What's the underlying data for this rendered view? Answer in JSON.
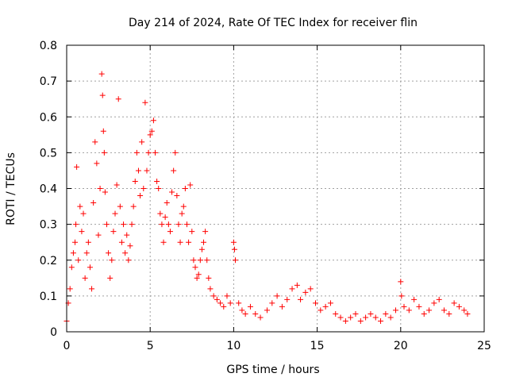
{
  "chart_data": {
    "type": "scatter",
    "title": "Day 214 of 2024, Rate Of TEC Index for receiver flin",
    "xlabel": "GPS time / hours",
    "ylabel": "ROTI / TECUs",
    "xlim": [
      0,
      25
    ],
    "ylim": [
      0,
      0.8
    ],
    "xticks": [
      "0",
      "5",
      "10",
      "15",
      "20",
      "25"
    ],
    "yticks": [
      "0",
      "0.1",
      "0.2",
      "0.3",
      "0.4",
      "0.5",
      "0.6",
      "0.7",
      "0.8"
    ],
    "grid": true,
    "marker": "+",
    "color": "#ff0000",
    "series": [
      {
        "name": "ROTI",
        "points": [
          [
            0.0,
            0.03
          ],
          [
            0.1,
            0.08
          ],
          [
            0.2,
            0.12
          ],
          [
            0.3,
            0.18
          ],
          [
            0.4,
            0.22
          ],
          [
            0.5,
            0.25
          ],
          [
            0.55,
            0.3
          ],
          [
            0.6,
            0.46
          ],
          [
            0.7,
            0.2
          ],
          [
            0.8,
            0.35
          ],
          [
            0.9,
            0.28
          ],
          [
            1.0,
            0.33
          ],
          [
            1.1,
            0.15
          ],
          [
            1.2,
            0.22
          ],
          [
            1.3,
            0.25
          ],
          [
            1.4,
            0.18
          ],
          [
            1.5,
            0.12
          ],
          [
            1.6,
            0.36
          ],
          [
            1.7,
            0.53
          ],
          [
            1.8,
            0.47
          ],
          [
            1.9,
            0.27
          ],
          [
            2.0,
            0.4
          ],
          [
            2.1,
            0.72
          ],
          [
            2.15,
            0.66
          ],
          [
            2.2,
            0.56
          ],
          [
            2.25,
            0.5
          ],
          [
            2.3,
            0.39
          ],
          [
            2.4,
            0.3
          ],
          [
            2.5,
            0.22
          ],
          [
            2.6,
            0.15
          ],
          [
            2.7,
            0.2
          ],
          [
            2.8,
            0.28
          ],
          [
            2.9,
            0.33
          ],
          [
            3.0,
            0.41
          ],
          [
            3.1,
            0.65
          ],
          [
            3.2,
            0.35
          ],
          [
            3.3,
            0.25
          ],
          [
            3.4,
            0.3
          ],
          [
            3.5,
            0.22
          ],
          [
            3.6,
            0.27
          ],
          [
            3.7,
            0.2
          ],
          [
            3.8,
            0.24
          ],
          [
            3.9,
            0.3
          ],
          [
            4.0,
            0.35
          ],
          [
            4.1,
            0.42
          ],
          [
            4.2,
            0.5
          ],
          [
            4.3,
            0.45
          ],
          [
            4.4,
            0.38
          ],
          [
            4.5,
            0.53
          ],
          [
            4.6,
            0.4
          ],
          [
            4.7,
            0.64
          ],
          [
            4.8,
            0.45
          ],
          [
            4.9,
            0.5
          ],
          [
            5.0,
            0.55
          ],
          [
            5.1,
            0.56
          ],
          [
            5.2,
            0.59
          ],
          [
            5.3,
            0.5
          ],
          [
            5.4,
            0.42
          ],
          [
            5.5,
            0.4
          ],
          [
            5.6,
            0.33
          ],
          [
            5.7,
            0.3
          ],
          [
            5.8,
            0.25
          ],
          [
            5.9,
            0.32
          ],
          [
            6.0,
            0.36
          ],
          [
            6.1,
            0.3
          ],
          [
            6.2,
            0.28
          ],
          [
            6.3,
            0.39
          ],
          [
            6.4,
            0.45
          ],
          [
            6.5,
            0.5
          ],
          [
            6.6,
            0.38
          ],
          [
            6.7,
            0.3
          ],
          [
            6.8,
            0.25
          ],
          [
            6.9,
            0.33
          ],
          [
            7.0,
            0.35
          ],
          [
            7.1,
            0.4
          ],
          [
            7.2,
            0.3
          ],
          [
            7.3,
            0.25
          ],
          [
            7.4,
            0.41
          ],
          [
            7.5,
            0.28
          ],
          [
            7.6,
            0.2
          ],
          [
            7.7,
            0.18
          ],
          [
            7.8,
            0.15
          ],
          [
            7.9,
            0.16
          ],
          [
            8.0,
            0.2
          ],
          [
            8.1,
            0.23
          ],
          [
            8.2,
            0.25
          ],
          [
            8.3,
            0.28
          ],
          [
            8.4,
            0.2
          ],
          [
            8.5,
            0.15
          ],
          [
            8.6,
            0.12
          ],
          [
            8.8,
            0.1
          ],
          [
            9.0,
            0.09
          ],
          [
            9.2,
            0.08
          ],
          [
            9.4,
            0.07
          ],
          [
            9.6,
            0.1
          ],
          [
            9.8,
            0.08
          ],
          [
            10.0,
            0.25
          ],
          [
            10.05,
            0.23
          ],
          [
            10.1,
            0.2
          ],
          [
            10.3,
            0.08
          ],
          [
            10.5,
            0.06
          ],
          [
            10.7,
            0.05
          ],
          [
            11.0,
            0.07
          ],
          [
            11.3,
            0.05
          ],
          [
            11.6,
            0.04
          ],
          [
            12.0,
            0.06
          ],
          [
            12.3,
            0.08
          ],
          [
            12.6,
            0.1
          ],
          [
            12.9,
            0.07
          ],
          [
            13.2,
            0.09
          ],
          [
            13.5,
            0.12
          ],
          [
            13.8,
            0.13
          ],
          [
            14.0,
            0.09
          ],
          [
            14.3,
            0.11
          ],
          [
            14.6,
            0.12
          ],
          [
            14.9,
            0.08
          ],
          [
            15.2,
            0.06
          ],
          [
            15.5,
            0.07
          ],
          [
            15.8,
            0.08
          ],
          [
            16.1,
            0.05
          ],
          [
            16.4,
            0.04
          ],
          [
            16.7,
            0.03
          ],
          [
            17.0,
            0.04
          ],
          [
            17.3,
            0.05
          ],
          [
            17.6,
            0.03
          ],
          [
            17.9,
            0.04
          ],
          [
            18.2,
            0.05
          ],
          [
            18.5,
            0.04
          ],
          [
            18.8,
            0.03
          ],
          [
            19.1,
            0.05
          ],
          [
            19.4,
            0.04
          ],
          [
            19.7,
            0.06
          ],
          [
            20.0,
            0.14
          ],
          [
            20.05,
            0.1
          ],
          [
            20.2,
            0.07
          ],
          [
            20.5,
            0.06
          ],
          [
            20.8,
            0.09
          ],
          [
            21.1,
            0.07
          ],
          [
            21.4,
            0.05
          ],
          [
            21.7,
            0.06
          ],
          [
            22.0,
            0.08
          ],
          [
            22.3,
            0.09
          ],
          [
            22.6,
            0.06
          ],
          [
            22.9,
            0.05
          ],
          [
            23.2,
            0.08
          ],
          [
            23.5,
            0.07
          ],
          [
            23.8,
            0.06
          ],
          [
            24.0,
            0.05
          ]
        ]
      }
    ]
  }
}
